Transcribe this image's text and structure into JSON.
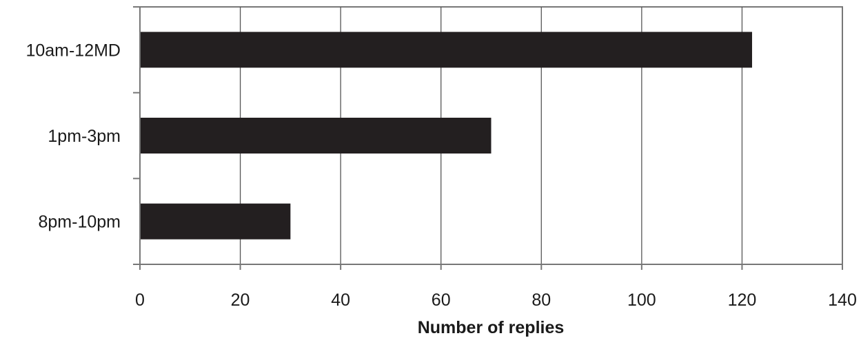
{
  "chart_data": {
    "type": "bar",
    "orientation": "horizontal",
    "categories": [
      "10am-12MD",
      "1pm-3pm",
      "8pm-10pm"
    ],
    "values": [
      122,
      70,
      30
    ],
    "title": "",
    "xlabel": "Number of replies",
    "ylabel": "",
    "xlim": [
      0,
      140
    ],
    "xticks": [
      0,
      20,
      40,
      60,
      80,
      100,
      120,
      140
    ],
    "xtick_labels": [
      "0",
      "20",
      "40",
      "60",
      "80",
      "100",
      "120",
      "140"
    ],
    "grid": "vertical",
    "legend": "none"
  },
  "colors": {
    "bar": "#231f20",
    "gridline": "#555555",
    "axis": "#777777",
    "text": "#1a1a1a"
  }
}
